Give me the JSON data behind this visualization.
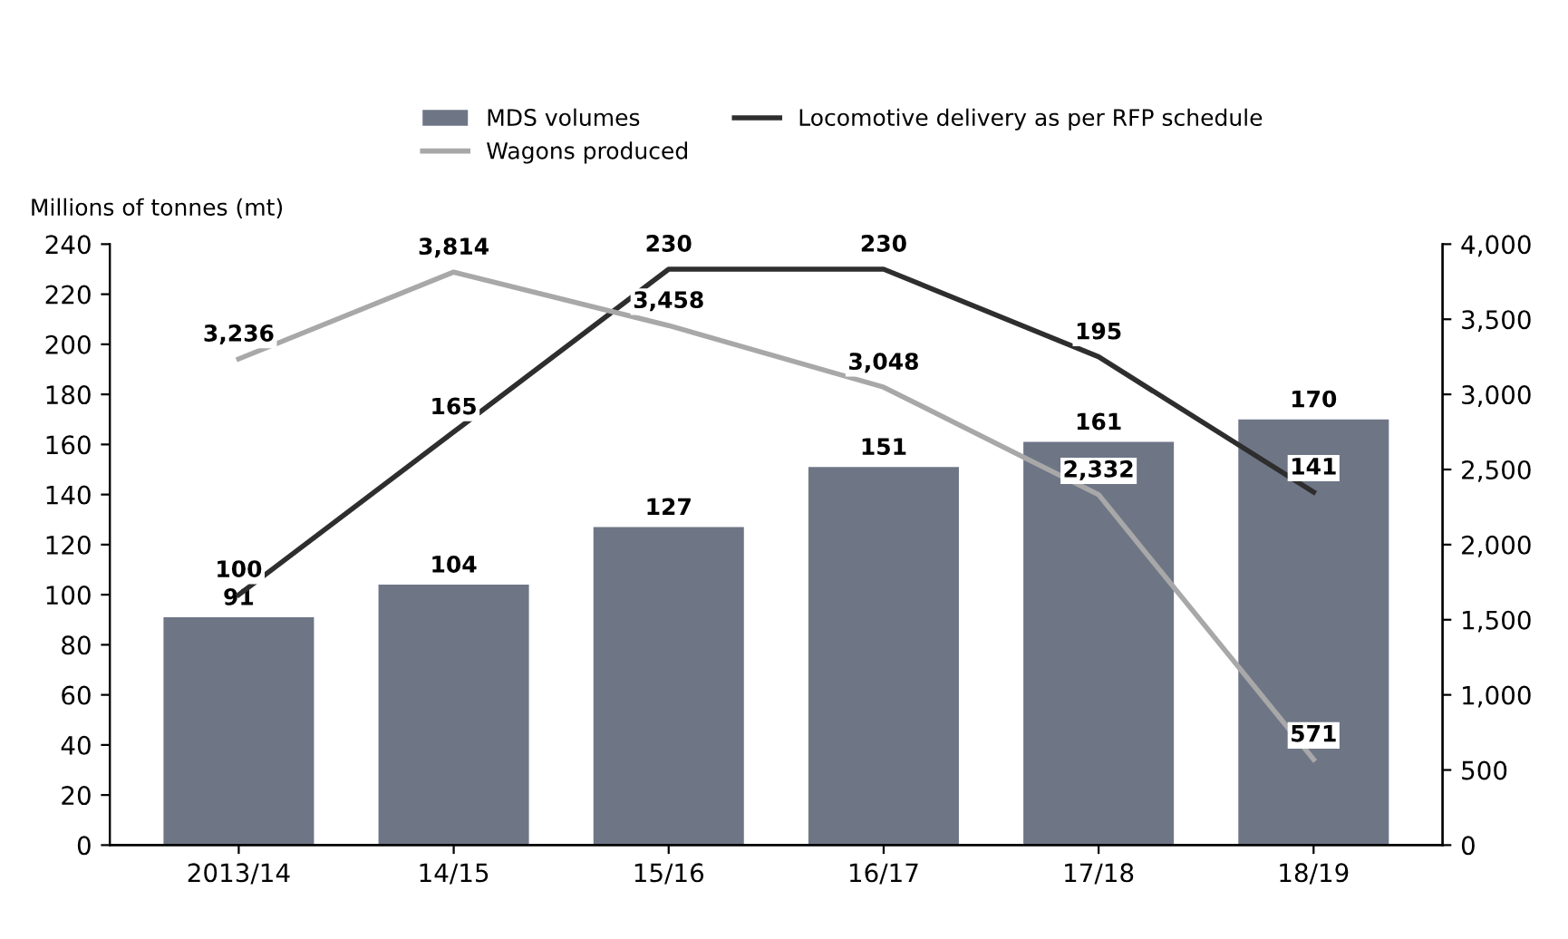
{
  "chart_data": {
    "type": "bar",
    "ylabel": "Millions of tonnes (mt)",
    "categories": [
      "2013/14",
      "14/15",
      "15/16",
      "16/17",
      "17/18",
      "18/19"
    ],
    "series": [
      {
        "name": "MDS volumes",
        "color": "#6e7686",
        "values": [
          91,
          104,
          127,
          151,
          161,
          170
        ],
        "value_labels": [
          "91",
          "104",
          "127",
          "151",
          "161",
          "170"
        ]
      },
      {
        "name": "Wagons produced",
        "type": "line",
        "axis": "y2",
        "color": "#a8a8a8",
        "values": [
          3236,
          3814,
          3458,
          3048,
          2332,
          571
        ],
        "value_labels": [
          "3,236",
          "3,814",
          "3,458",
          "3,048",
          "2,332",
          "571"
        ]
      },
      {
        "name": "Locomotive delivery as per RFP schedule",
        "type": "line",
        "color": "#2e2e2e",
        "values": [
          100,
          165,
          230,
          230,
          195,
          141
        ],
        "value_labels": [
          "100",
          "165",
          "230",
          "230",
          "195",
          "141"
        ]
      }
    ],
    "ylim": [
      0,
      240
    ],
    "yticks": [
      0,
      20,
      40,
      60,
      80,
      100,
      120,
      140,
      160,
      180,
      200,
      220,
      240
    ],
    "y2lim": [
      0,
      4000
    ],
    "y2ticks": [
      0,
      {
        "value": 500,
        "label": "500"
      },
      {
        "value": 1000,
        "label": "1,000"
      },
      {
        "value": 1500,
        "label": "1,500"
      },
      {
        "value": 2000,
        "label": "2,000"
      },
      {
        "value": 2500,
        "label": "2,500"
      },
      {
        "value": 3000,
        "label": "3,000"
      },
      {
        "value": 3500,
        "label": "3,500"
      },
      {
        "value": 4000,
        "label": "4,000"
      }
    ],
    "legend": "top",
    "grid": false
  }
}
